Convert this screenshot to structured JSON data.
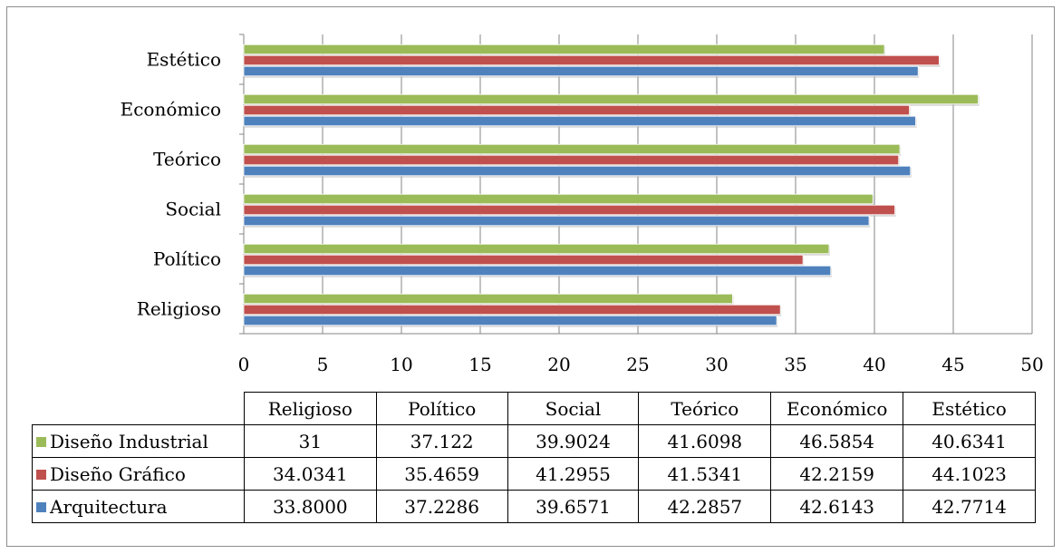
{
  "chart_data": {
    "type": "bar",
    "orientation": "horizontal",
    "categories": [
      "Religioso",
      "Político",
      "Social",
      "Teórico",
      "Económico",
      "Estético"
    ],
    "series": [
      {
        "name": "Diseño Industrial",
        "color": "#9bbb59",
        "values": [
          31,
          37.122,
          39.9024,
          41.6098,
          46.5854,
          40.6341
        ],
        "labels": [
          "31",
          "37.122",
          "39.9024",
          "41.6098",
          "46.5854",
          "40.6341"
        ]
      },
      {
        "name": "Diseño Gráfico",
        "color": "#c0504d",
        "values": [
          34.0341,
          35.4659,
          41.2955,
          41.5341,
          42.2159,
          44.1023
        ],
        "labels": [
          "34.0341",
          "35.4659",
          "41.2955",
          "41.5341",
          "42.2159",
          "44.1023"
        ]
      },
      {
        "name": "Arquitectura",
        "color": "#4f81bd",
        "values": [
          33.8,
          37.2286,
          39.6571,
          42.2857,
          42.6143,
          42.7714
        ],
        "labels": [
          "33.8000",
          "37.2286",
          "39.6571",
          "42.2857",
          "42.6143",
          "42.7714"
        ]
      }
    ],
    "xlim": [
      0,
      50
    ],
    "xticks": [
      "0",
      "5",
      "10",
      "15",
      "20",
      "25",
      "30",
      "35",
      "40",
      "45",
      "50"
    ],
    "grid": "vertical",
    "legend": "data-table"
  }
}
